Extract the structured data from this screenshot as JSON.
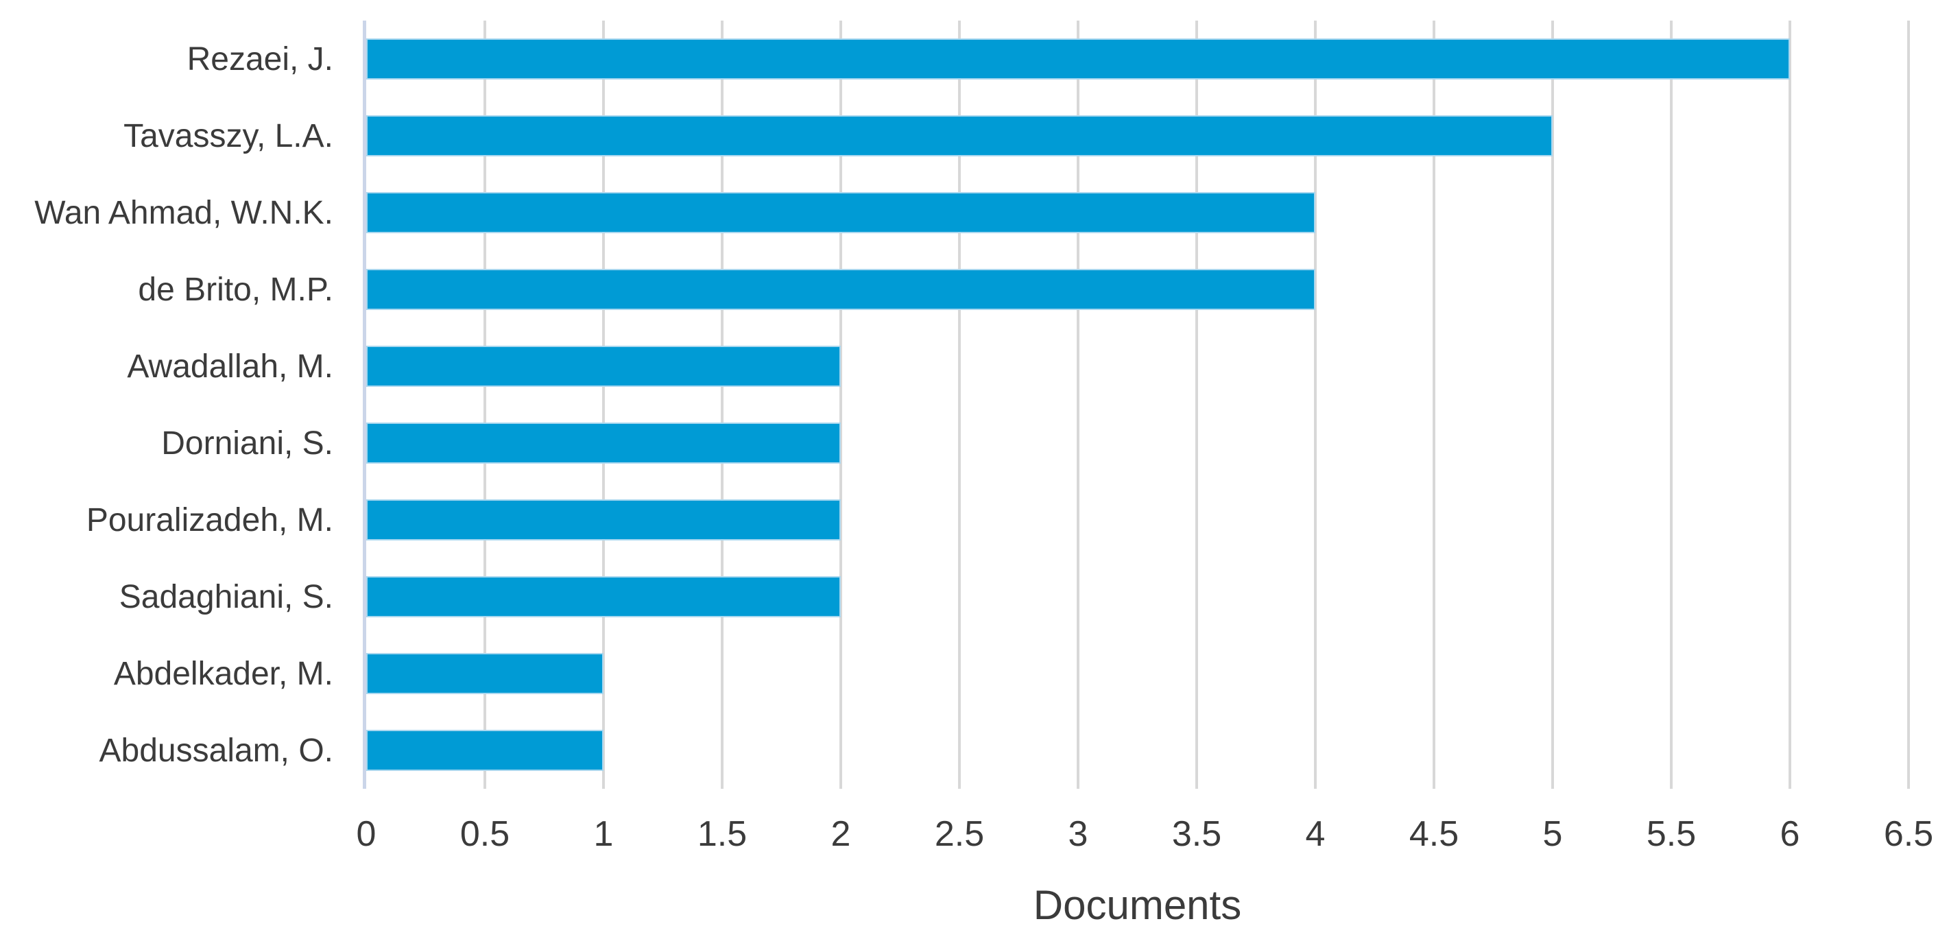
{
  "chart_data": {
    "type": "bar",
    "orientation": "horizontal",
    "title": "",
    "xlabel": "Documents",
    "ylabel": "",
    "categories": [
      "Rezaei, J.",
      "Tavasszy, L.A.",
      "Wan Ahmad, W.N.K.",
      "de Brito, M.P.",
      "Awadallah, M.",
      "Dorniani, S.",
      "Pouralizadeh, M.",
      "Sadaghiani, S.",
      "Abdelkader, M.",
      "Abdussalam, O."
    ],
    "values": [
      6,
      5,
      4,
      4,
      2,
      2,
      2,
      2,
      1,
      1
    ],
    "xlim": [
      0,
      6.5
    ],
    "xtick_step": 0.5,
    "xtick_labels": [
      "0",
      "0.5",
      "1",
      "1.5",
      "2",
      "2.5",
      "3",
      "3.5",
      "4",
      "4.5",
      "5",
      "5.5",
      "6",
      "6.5"
    ],
    "grid": "vertical-only",
    "legend": "none",
    "colors": {
      "bar_fill": "#009bd5",
      "bar_border": "#a9d7ef",
      "gridline": "#d8d8d8",
      "zero_axis_line": "#cbd5e9",
      "text": "#3b3b3b"
    }
  }
}
